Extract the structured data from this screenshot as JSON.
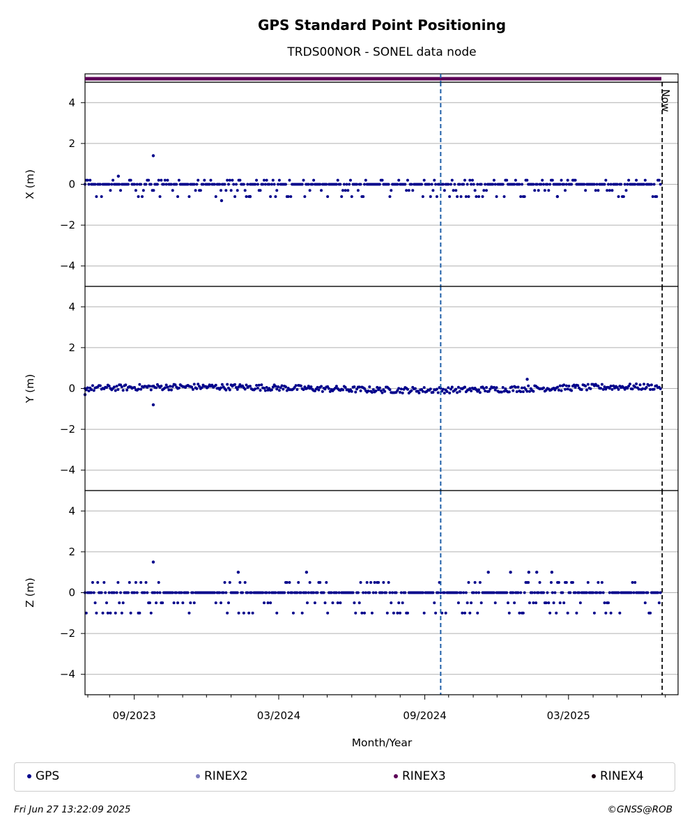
{
  "title": "GPS Standard Point Positioning",
  "subtitle": "TRDS00NOR - SONEL data node",
  "now_label": "Now",
  "footer": {
    "timestamp": "Fri Jun 27 13:22:09 2025",
    "copyright": "©GNSS@ROB"
  },
  "legend": [
    {
      "label": "GPS",
      "color": "#00008b"
    },
    {
      "label": "RINEX2",
      "color": "#7b7bbd"
    },
    {
      "label": "RINEX3",
      "color": "#5c0057"
    },
    {
      "label": "RINEX4",
      "color": "#1a0010"
    }
  ],
  "colors": {
    "gps": "#00008b",
    "rinex3_bar": "#5c0057",
    "marker_line": "#1f5fa8",
    "now_line": "#000000",
    "grid": "#b0b0b0"
  },
  "chart_data": {
    "type": "scatter",
    "xlabel": "Month/Year",
    "x_ticks": [
      "09/2023",
      "03/2024",
      "09/2024",
      "03/2025"
    ],
    "x_range": [
      "2023-07-01",
      "2025-07-17"
    ],
    "data_range": [
      "2023-07-01",
      "2025-06-26"
    ],
    "marker_date": "2024-09-21",
    "now_date": "2025-06-27",
    "rinex3_coverage": [
      "2023-07-01",
      "2025-06-26"
    ],
    "y_ticks": [
      4,
      2,
      0,
      -2,
      -4
    ],
    "ylim": [
      -5,
      5
    ],
    "grid": true,
    "legend_position": "bottom",
    "panels": [
      {
        "ylabel": "X (m)",
        "typical_values": [
          0,
          -0.3,
          0.2,
          -0.6
        ],
        "outliers": [
          {
            "x": "2023-09-25",
            "y": 1.4
          },
          {
            "x": "2023-08-12",
            "y": 0.4
          },
          {
            "x": "2023-12-20",
            "y": -0.8
          },
          {
            "x": "2024-01-25",
            "y": -0.6
          },
          {
            "x": "2025-02-15",
            "y": -0.6
          }
        ]
      },
      {
        "ylabel": "Y (m)",
        "typical_values": [
          0.1,
          0,
          -0.1,
          0.2,
          -0.2
        ],
        "outliers": [
          {
            "x": "2023-09-25",
            "y": -0.8
          },
          {
            "x": "2023-07-01",
            "y": -0.3
          },
          {
            "x": "2025-01-08",
            "y": 0.45
          }
        ]
      },
      {
        "ylabel": "Z (m)",
        "typical_values": [
          0,
          -0.5,
          0.5,
          -1.0
        ],
        "outliers": [
          {
            "x": "2023-09-25",
            "y": 1.5
          },
          {
            "x": "2024-01-10",
            "y": 1.0
          },
          {
            "x": "2024-04-05",
            "y": 1.0
          },
          {
            "x": "2025-02-08",
            "y": 1.0
          },
          {
            "x": "2024-11-20",
            "y": 1.0
          },
          {
            "x": "2024-12-18",
            "y": 1.0
          },
          {
            "x": "2025-01-10",
            "y": 1.0
          },
          {
            "x": "2025-01-20",
            "y": 1.0
          }
        ]
      }
    ]
  }
}
